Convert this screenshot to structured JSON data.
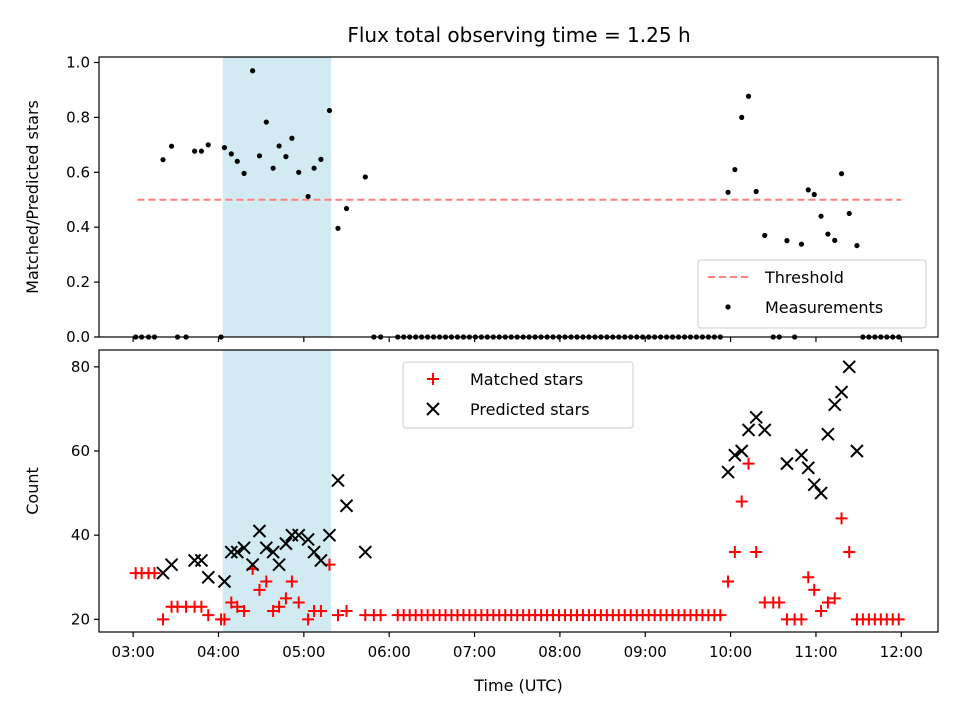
{
  "chart_data": [
    {
      "type": "scatter",
      "title": "Flux total observing time = 1.25 h",
      "ylabel": "Matched/Predicted stars",
      "xlabel": "",
      "xlim": [
        2.6,
        12.43
      ],
      "ylim": [
        0.0,
        1.02
      ],
      "yticks": [
        0.0,
        0.2,
        0.4,
        0.6,
        0.8,
        1.0
      ],
      "ytick_labels": [
        "0.0",
        "0.2",
        "0.4",
        "0.6",
        "0.8",
        "1.0"
      ],
      "grid": false,
      "legend": "lower-right",
      "highlight_span": {
        "x": [
          4.05,
          5.32
        ],
        "color": "#add8e6"
      },
      "threshold": {
        "name": "Threshold",
        "value": 0.5,
        "x": [
          3.05,
          12.0
        ],
        "color": "#ff7f7f"
      },
      "series": [
        {
          "name": "Measurements",
          "color": "#000000",
          "points": [
            [
              3.03,
              0
            ],
            [
              3.1,
              0
            ],
            [
              3.18,
              0
            ],
            [
              3.25,
              0
            ],
            [
              3.35,
              0.646
            ],
            [
              3.45,
              0.695
            ],
            [
              3.52,
              0
            ],
            [
              3.62,
              0
            ],
            [
              3.72,
              0.677
            ],
            [
              3.8,
              0.677
            ],
            [
              3.88,
              0.7
            ],
            [
              4.03,
              0
            ],
            [
              4.07,
              0.69
            ],
            [
              4.15,
              0.667
            ],
            [
              4.22,
              0.64
            ],
            [
              4.3,
              0.596
            ],
            [
              4.4,
              0.97
            ],
            [
              4.48,
              0.66
            ],
            [
              4.56,
              0.783
            ],
            [
              4.64,
              0.615
            ],
            [
              4.71,
              0.696
            ],
            [
              4.79,
              0.657
            ],
            [
              4.86,
              0.724
            ],
            [
              4.94,
              0.6
            ],
            [
              5.05,
              0.512
            ],
            [
              5.12,
              0.615
            ],
            [
              5.2,
              0.647
            ],
            [
              5.3,
              0.825
            ],
            [
              5.4,
              0.396
            ],
            [
              5.5,
              0.468
            ],
            [
              5.72,
              0.583
            ],
            [
              5.82,
              0
            ],
            [
              5.9,
              0
            ],
            [
              6.1,
              0
            ],
            [
              6.17,
              0
            ],
            [
              6.24,
              0
            ],
            [
              6.31,
              0
            ],
            [
              6.38,
              0
            ],
            [
              6.45,
              0
            ],
            [
              6.52,
              0
            ],
            [
              6.59,
              0
            ],
            [
              6.66,
              0
            ],
            [
              6.73,
              0
            ],
            [
              6.8,
              0
            ],
            [
              6.87,
              0
            ],
            [
              6.94,
              0
            ],
            [
              7.01,
              0
            ],
            [
              7.08,
              0
            ],
            [
              7.15,
              0
            ],
            [
              7.22,
              0
            ],
            [
              7.29,
              0
            ],
            [
              7.36,
              0
            ],
            [
              7.43,
              0
            ],
            [
              7.5,
              0
            ],
            [
              7.57,
              0
            ],
            [
              7.64,
              0
            ],
            [
              7.71,
              0
            ],
            [
              7.78,
              0
            ],
            [
              7.85,
              0
            ],
            [
              7.92,
              0
            ],
            [
              7.99,
              0
            ],
            [
              8.06,
              0
            ],
            [
              8.13,
              0
            ],
            [
              8.2,
              0
            ],
            [
              8.27,
              0
            ],
            [
              8.34,
              0
            ],
            [
              8.41,
              0
            ],
            [
              8.48,
              0
            ],
            [
              8.55,
              0
            ],
            [
              8.62,
              0
            ],
            [
              8.69,
              0
            ],
            [
              8.76,
              0
            ],
            [
              8.83,
              0
            ],
            [
              8.9,
              0
            ],
            [
              8.97,
              0
            ],
            [
              9.04,
              0
            ],
            [
              9.11,
              0
            ],
            [
              9.18,
              0
            ],
            [
              9.25,
              0
            ],
            [
              9.32,
              0
            ],
            [
              9.39,
              0
            ],
            [
              9.46,
              0
            ],
            [
              9.53,
              0
            ],
            [
              9.6,
              0
            ],
            [
              9.67,
              0
            ],
            [
              9.74,
              0
            ],
            [
              9.81,
              0
            ],
            [
              9.88,
              0
            ],
            [
              9.97,
              0.527
            ],
            [
              10.05,
              0.61
            ],
            [
              10.13,
              0.8
            ],
            [
              10.21,
              0.877
            ],
            [
              10.3,
              0.53
            ],
            [
              10.4,
              0.37
            ],
            [
              10.5,
              0
            ],
            [
              10.57,
              0
            ],
            [
              10.66,
              0.351
            ],
            [
              10.75,
              0
            ],
            [
              10.83,
              0.338
            ],
            [
              10.91,
              0.536
            ],
            [
              10.98,
              0.519
            ],
            [
              11.06,
              0.44
            ],
            [
              11.14,
              0.375
            ],
            [
              11.22,
              0.352
            ],
            [
              11.3,
              0.595
            ],
            [
              11.39,
              0.45
            ],
            [
              11.48,
              0.333
            ],
            [
              11.55,
              0
            ],
            [
              11.62,
              0
            ],
            [
              11.69,
              0
            ],
            [
              11.76,
              0
            ],
            [
              11.83,
              0
            ],
            [
              11.9,
              0
            ],
            [
              11.97,
              0
            ]
          ]
        }
      ]
    },
    {
      "type": "scatter",
      "title": "",
      "ylabel": "Count",
      "xlabel": "Time (UTC)",
      "xlim": [
        2.6,
        12.43
      ],
      "ylim": [
        17,
        84
      ],
      "xticks": [
        3,
        4,
        5,
        6,
        7,
        8,
        9,
        10,
        11,
        12
      ],
      "xtick_labels": [
        "03:00",
        "04:00",
        "05:00",
        "06:00",
        "07:00",
        "08:00",
        "09:00",
        "10:00",
        "11:00",
        "12:00"
      ],
      "yticks": [
        20,
        40,
        60,
        80
      ],
      "ytick_labels": [
        "20",
        "40",
        "60",
        "80"
      ],
      "grid": false,
      "legend": "upper-center",
      "highlight_span": {
        "x": [
          4.05,
          5.32
        ],
        "color": "#add8e6"
      },
      "series": [
        {
          "name": "Matched stars",
          "marker": "plus",
          "color": "#ff0000",
          "points": [
            [
              3.03,
              31
            ],
            [
              3.1,
              31
            ],
            [
              3.18,
              31
            ],
            [
              3.25,
              31
            ],
            [
              3.35,
              20
            ],
            [
              3.45,
              23
            ],
            [
              3.52,
              23
            ],
            [
              3.62,
              23
            ],
            [
              3.72,
              23
            ],
            [
              3.8,
              23
            ],
            [
              3.88,
              21
            ],
            [
              4.03,
              20
            ],
            [
              4.07,
              20
            ],
            [
              4.15,
              24
            ],
            [
              4.22,
              23
            ],
            [
              4.3,
              22
            ],
            [
              4.4,
              32
            ],
            [
              4.48,
              27
            ],
            [
              4.56,
              29
            ],
            [
              4.64,
              22
            ],
            [
              4.71,
              23
            ],
            [
              4.79,
              25
            ],
            [
              4.86,
              29
            ],
            [
              4.94,
              24
            ],
            [
              5.05,
              20
            ],
            [
              5.12,
              22
            ],
            [
              5.2,
              22
            ],
            [
              5.3,
              33
            ],
            [
              5.4,
              21
            ],
            [
              5.5,
              22
            ],
            [
              5.72,
              21
            ],
            [
              5.82,
              21
            ],
            [
              5.9,
              21
            ],
            [
              6.1,
              21
            ],
            [
              6.17,
              21
            ],
            [
              6.24,
              21
            ],
            [
              6.31,
              21
            ],
            [
              6.38,
              21
            ],
            [
              6.45,
              21
            ],
            [
              6.52,
              21
            ],
            [
              6.59,
              21
            ],
            [
              6.66,
              21
            ],
            [
              6.73,
              21
            ],
            [
              6.8,
              21
            ],
            [
              6.87,
              21
            ],
            [
              6.94,
              21
            ],
            [
              7.01,
              21
            ],
            [
              7.08,
              21
            ],
            [
              7.15,
              21
            ],
            [
              7.22,
              21
            ],
            [
              7.29,
              21
            ],
            [
              7.36,
              21
            ],
            [
              7.43,
              21
            ],
            [
              7.5,
              21
            ],
            [
              7.57,
              21
            ],
            [
              7.64,
              21
            ],
            [
              7.71,
              21
            ],
            [
              7.78,
              21
            ],
            [
              7.85,
              21
            ],
            [
              7.92,
              21
            ],
            [
              7.99,
              21
            ],
            [
              8.06,
              21
            ],
            [
              8.13,
              21
            ],
            [
              8.2,
              21
            ],
            [
              8.27,
              21
            ],
            [
              8.34,
              21
            ],
            [
              8.41,
              21
            ],
            [
              8.48,
              21
            ],
            [
              8.55,
              21
            ],
            [
              8.62,
              21
            ],
            [
              8.69,
              21
            ],
            [
              8.76,
              21
            ],
            [
              8.83,
              21
            ],
            [
              8.9,
              21
            ],
            [
              8.97,
              21
            ],
            [
              9.04,
              21
            ],
            [
              9.11,
              21
            ],
            [
              9.18,
              21
            ],
            [
              9.25,
              21
            ],
            [
              9.32,
              21
            ],
            [
              9.39,
              21
            ],
            [
              9.46,
              21
            ],
            [
              9.53,
              21
            ],
            [
              9.6,
              21
            ],
            [
              9.67,
              21
            ],
            [
              9.74,
              21
            ],
            [
              9.81,
              21
            ],
            [
              9.88,
              21
            ],
            [
              9.97,
              29
            ],
            [
              10.05,
              36
            ],
            [
              10.13,
              48
            ],
            [
              10.21,
              57
            ],
            [
              10.3,
              36
            ],
            [
              10.4,
              24
            ],
            [
              10.5,
              24
            ],
            [
              10.57,
              24
            ],
            [
              10.66,
              20
            ],
            [
              10.75,
              20
            ],
            [
              10.83,
              20
            ],
            [
              10.91,
              30
            ],
            [
              10.98,
              27
            ],
            [
              11.06,
              22
            ],
            [
              11.14,
              24
            ],
            [
              11.22,
              25
            ],
            [
              11.3,
              44
            ],
            [
              11.39,
              36
            ],
            [
              11.48,
              20
            ],
            [
              11.55,
              20
            ],
            [
              11.62,
              20
            ],
            [
              11.69,
              20
            ],
            [
              11.76,
              20
            ],
            [
              11.83,
              20
            ],
            [
              11.9,
              20
            ],
            [
              11.97,
              20
            ]
          ]
        },
        {
          "name": "Predicted stars",
          "marker": "x",
          "color": "#000000",
          "points": [
            [
              3.35,
              31
            ],
            [
              3.45,
              33
            ],
            [
              3.72,
              34
            ],
            [
              3.8,
              34
            ],
            [
              3.88,
              30
            ],
            [
              4.07,
              29
            ],
            [
              4.15,
              36
            ],
            [
              4.22,
              36
            ],
            [
              4.3,
              37
            ],
            [
              4.4,
              33
            ],
            [
              4.48,
              41
            ],
            [
              4.56,
              37
            ],
            [
              4.64,
              36
            ],
            [
              4.71,
              33
            ],
            [
              4.79,
              38
            ],
            [
              4.86,
              40
            ],
            [
              4.94,
              40
            ],
            [
              5.05,
              39
            ],
            [
              5.12,
              36
            ],
            [
              5.2,
              34
            ],
            [
              5.3,
              40
            ],
            [
              5.4,
              53
            ],
            [
              5.5,
              47
            ],
            [
              5.72,
              36
            ],
            [
              9.97,
              55
            ],
            [
              10.05,
              59
            ],
            [
              10.13,
              60
            ],
            [
              10.21,
              65
            ],
            [
              10.3,
              68
            ],
            [
              10.4,
              65
            ],
            [
              10.66,
              57
            ],
            [
              10.83,
              59
            ],
            [
              10.91,
              56
            ],
            [
              10.98,
              52
            ],
            [
              11.06,
              50
            ],
            [
              11.14,
              64
            ],
            [
              11.22,
              71
            ],
            [
              11.3,
              74
            ],
            [
              11.39,
              80
            ],
            [
              11.48,
              60
            ]
          ]
        }
      ]
    }
  ]
}
